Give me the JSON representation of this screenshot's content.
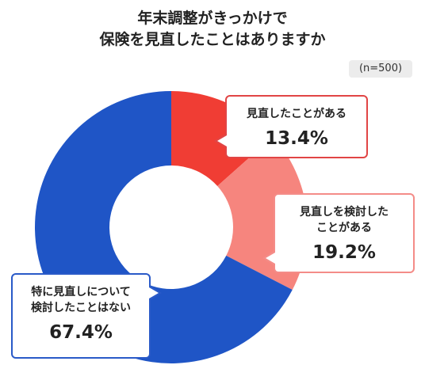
{
  "chart_data": {
    "type": "pie",
    "style": "donut",
    "title_lines": [
      "年末調整がきっかけで",
      "保険を見直したことはありますか"
    ],
    "note": "(n=500)",
    "slices": [
      {
        "label_lines": [
          "見直したことがある"
        ],
        "value": 13.4,
        "display": "13.4%",
        "color": "#f03d34"
      },
      {
        "label_lines": [
          "見直しを検討した",
          "ことがある"
        ],
        "value": 19.2,
        "display": "19.2%",
        "color": "#f6857e"
      },
      {
        "label_lines": [
          "特に見直しについて",
          "検討したことはない"
        ],
        "value": 67.4,
        "display": "67.4%",
        "color": "#1f55c6"
      }
    ]
  }
}
